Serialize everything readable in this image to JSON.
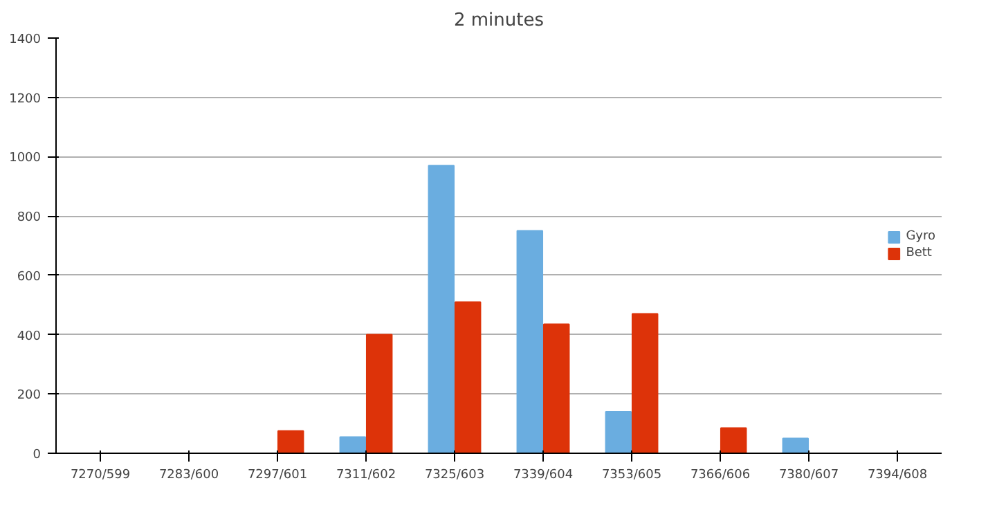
{
  "chart_data": {
    "type": "bar",
    "title": "2 minutes",
    "categories": [
      "7270/599",
      "7283/600",
      "7297/601",
      "7311/602",
      "7325/603",
      "7339/604",
      "7353/605",
      "7366/606",
      "7380/607",
      "7394/608"
    ],
    "series": [
      {
        "name": "Gyro",
        "color": "#6aade0",
        "values": [
          0,
          0,
          0,
          55,
          970,
          750,
          140,
          0,
          50,
          0
        ]
      },
      {
        "name": "Bett",
        "color": "#dd3309",
        "values": [
          0,
          0,
          75,
          400,
          510,
          435,
          470,
          85,
          0,
          0
        ]
      }
    ],
    "ylim": [
      0,
      1400
    ],
    "yticks": [
      0,
      200,
      400,
      600,
      800,
      1000,
      1200,
      1400
    ],
    "grid": "y",
    "legend": "right"
  }
}
